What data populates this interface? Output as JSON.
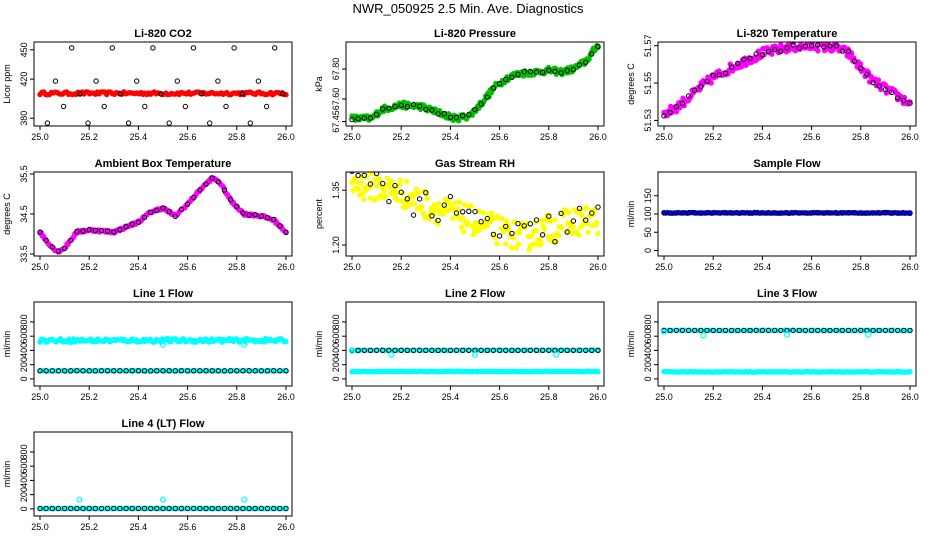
{
  "page": {
    "title": "NWR_050925  2.5 Min. Ave. Diagnostics"
  },
  "colors": {
    "co2": "#ff0000",
    "pressure": "#00c000",
    "temperature": "#ff00ff",
    "box": "#ff00ff",
    "rh": "#ffff00",
    "flow": "#0000ff",
    "line": "#00ffff",
    "outline": "#000000"
  },
  "chart_data": [
    {
      "id": "co2",
      "type": "scatter",
      "title": "Li-820 CO2",
      "ylabel": "Licor ppm",
      "xlim": [
        25.0,
        26.0
      ],
      "xticks": [
        "25.0",
        "25.2",
        "25.4",
        "25.6",
        "25.8",
        "26.0"
      ],
      "ylim": [
        372,
        458
      ],
      "yticks": [
        {
          "v": 380,
          "l": "380"
        },
        {
          "v": 420,
          "l": "420"
        },
        {
          "v": 450,
          "l": "450"
        }
      ],
      "series": [
        {
          "name": "dense",
          "color": "#ff0000",
          "kind": "band",
          "x": [
            25.0,
            26.0
          ],
          "y": [
            404,
            407
          ],
          "n": 130
        },
        {
          "name": "samples",
          "color": "#000000",
          "kind": "cycle",
          "x0": 25.03,
          "dx": 0.033,
          "levels": [
            375,
            392,
            405,
            418,
            452
          ]
        }
      ]
    },
    {
      "id": "pressure",
      "type": "scatter",
      "title": "Li-820 Pressure",
      "ylabel": "kPa",
      "xlim": [
        25.0,
        26.0
      ],
      "xticks": [
        "25.0",
        "25.2",
        "25.4",
        "25.6",
        "25.8",
        "26.0"
      ],
      "ylim": [
        67.42,
        67.98
      ],
      "yticks": [
        {
          "v": 67.45,
          "l": "67.45"
        },
        {
          "v": 67.6,
          "l": "67.60"
        },
        {
          "v": 67.8,
          "l": "67.80"
        }
      ],
      "series": [
        {
          "name": "dense",
          "color": "#00c000",
          "kind": "curve",
          "jitter": 0.02,
          "x": [
            25.0,
            25.08,
            25.12,
            25.2,
            25.28,
            25.35,
            25.42,
            25.48,
            25.53,
            25.58,
            25.63,
            25.68,
            25.75,
            25.8,
            25.85,
            25.9,
            25.95,
            26.0
          ],
          "y": [
            67.47,
            67.47,
            67.53,
            67.56,
            67.55,
            67.51,
            67.47,
            67.49,
            67.58,
            67.68,
            67.74,
            67.77,
            67.78,
            67.79,
            67.78,
            67.8,
            67.85,
            67.96
          ],
          "n": 220
        }
      ]
    },
    {
      "id": "temperature",
      "type": "scatter",
      "title": "Li-820 Temperature",
      "ylabel": "degrees C",
      "xlim": [
        25.0,
        26.0
      ],
      "xticks": [
        "25.0",
        "25.2",
        "25.4",
        "25.6",
        "25.8",
        "26.0"
      ],
      "ylim": [
        51.527,
        51.572
      ],
      "yticks": [
        {
          "v": 51.53,
          "l": "51.53"
        },
        {
          "v": 51.55,
          "l": "51.55"
        },
        {
          "v": 51.57,
          "l": "51.57"
        }
      ],
      "series": [
        {
          "name": "dense",
          "color": "#ff00ff",
          "kind": "curve",
          "jitter": 0.0025,
          "x": [
            25.0,
            25.05,
            25.1,
            25.15,
            25.2,
            25.3,
            25.4,
            25.5,
            25.6,
            25.7,
            25.75,
            25.8,
            25.85,
            25.9,
            25.95,
            26.0
          ],
          "y": [
            51.533,
            51.537,
            51.542,
            51.548,
            51.553,
            51.56,
            51.566,
            51.569,
            51.57,
            51.569,
            51.566,
            51.558,
            51.551,
            51.547,
            51.543,
            51.539
          ],
          "n": 220
        }
      ]
    },
    {
      "id": "box",
      "type": "scatter",
      "title": "Ambient Box Temperature",
      "ylabel": "degrees C",
      "xlim": [
        25.0,
        26.0
      ],
      "xticks": [
        "25.0",
        "25.2",
        "25.4",
        "25.6",
        "25.8",
        "26.0"
      ],
      "ylim": [
        33.45,
        35.55
      ],
      "yticks": [
        {
          "v": 33.5,
          "l": "33.5"
        },
        {
          "v": 34.5,
          "l": "34.5"
        },
        {
          "v": 35.5,
          "l": "35.5"
        }
      ],
      "series": [
        {
          "name": "dense",
          "color": "#ff00ff",
          "kind": "curve",
          "jitter": 0.03,
          "x": [
            25.0,
            25.03,
            25.07,
            25.1,
            25.15,
            25.2,
            25.3,
            25.4,
            25.45,
            25.5,
            25.55,
            25.6,
            25.65,
            25.7,
            25.73,
            25.78,
            25.83,
            25.9,
            25.95,
            26.0
          ],
          "y": [
            34.05,
            33.8,
            33.55,
            33.65,
            34.05,
            34.1,
            34.05,
            34.3,
            34.55,
            34.65,
            34.45,
            34.75,
            35.1,
            35.4,
            35.3,
            34.8,
            34.5,
            34.45,
            34.35,
            34.05
          ],
          "n": 220
        }
      ]
    },
    {
      "id": "rh",
      "type": "scatter",
      "title": "Gas Stream RH",
      "ylabel": "percent",
      "xlim": [
        25.0,
        26.0
      ],
      "xticks": [
        "25.0",
        "25.2",
        "25.4",
        "25.6",
        "25.8",
        "26.0"
      ],
      "ylim": [
        1.17,
        1.4
      ],
      "yticks": [
        {
          "v": 1.2,
          "l": "1.20"
        },
        {
          "v": 1.35,
          "l": "1.35"
        }
      ],
      "series": [
        {
          "name": "dense",
          "color": "#ffff00",
          "kind": "curve",
          "jitter": 0.04,
          "x": [
            25.0,
            25.1,
            25.2,
            25.3,
            25.4,
            25.5,
            25.6,
            25.7,
            25.8,
            25.9,
            26.0
          ],
          "y": [
            1.365,
            1.36,
            1.345,
            1.31,
            1.285,
            1.265,
            1.24,
            1.22,
            1.245,
            1.265,
            1.27
          ],
          "n": 230
        }
      ]
    },
    {
      "id": "sample",
      "type": "scatter",
      "title": "Sample Flow",
      "ylabel": "ml/min",
      "xlim": [
        25.0,
        26.0
      ],
      "xticks": [
        "25.0",
        "25.2",
        "25.4",
        "25.6",
        "25.8",
        "26.0"
      ],
      "ylim": [
        -15,
        215
      ],
      "yticks": [
        {
          "v": 0,
          "l": "0"
        },
        {
          "v": 50,
          "l": "50"
        },
        {
          "v": 100,
          "l": "100"
        },
        {
          "v": 150,
          "l": "150"
        }
      ],
      "series": [
        {
          "name": "dense",
          "color": "#0000ff",
          "kind": "band",
          "x": [
            25.0,
            26.0
          ],
          "y": [
            102,
            104
          ],
          "n": 140
        }
      ]
    },
    {
      "id": "line1",
      "type": "scatter",
      "title": "Line 1 Flow",
      "ylabel": "ml/min",
      "xlim": [
        25.0,
        26.0
      ],
      "xticks": [
        "25.0",
        "25.2",
        "25.4",
        "25.6",
        "25.8",
        "26.0"
      ],
      "ylim": [
        -100,
        1080
      ],
      "yticks": [
        {
          "v": 0,
          "l": "0"
        },
        {
          "v": 200,
          "l": "200"
        },
        {
          "v": 400,
          "l": "400"
        },
        {
          "v": 600,
          "l": "600"
        },
        {
          "v": 800,
          "l": "800"
        }
      ],
      "series": [
        {
          "name": "dense",
          "color": "#00ffff",
          "kind": "band",
          "x": [
            25.0,
            26.0
          ],
          "y": [
            515,
            565
          ],
          "n": 170
        },
        {
          "name": "dense2",
          "color": "#00ffff",
          "kind": "band",
          "x": [
            25.0,
            26.0
          ],
          "y": [
            110,
            118
          ],
          "n": 80
        }
      ]
    },
    {
      "id": "line2",
      "type": "scatter",
      "title": "Line 2 Flow",
      "ylabel": "ml/min",
      "xlim": [
        25.0,
        26.0
      ],
      "xticks": [
        "25.0",
        "25.2",
        "25.4",
        "25.6",
        "25.8",
        "26.0"
      ],
      "ylim": [
        -100,
        1080
      ],
      "yticks": [
        {
          "v": 0,
          "l": "0"
        },
        {
          "v": 200,
          "l": "200"
        },
        {
          "v": 400,
          "l": "400"
        },
        {
          "v": 600,
          "l": "600"
        },
        {
          "v": 800,
          "l": "800"
        }
      ],
      "series": [
        {
          "name": "dense",
          "color": "#00ffff",
          "kind": "band",
          "x": [
            25.0,
            26.0
          ],
          "y": [
            100,
            108
          ],
          "n": 170
        },
        {
          "name": "dense2",
          "color": "#00ffff",
          "kind": "band",
          "x": [
            25.0,
            26.0
          ],
          "y": [
            398,
            406
          ],
          "n": 60
        }
      ]
    },
    {
      "id": "line3",
      "type": "scatter",
      "title": "Line 3 Flow",
      "ylabel": "ml/min",
      "xlim": [
        25.0,
        26.0
      ],
      "xticks": [
        "25.0",
        "25.2",
        "25.4",
        "25.6",
        "25.8",
        "26.0"
      ],
      "ylim": [
        -100,
        1080
      ],
      "yticks": [
        {
          "v": 0,
          "l": "0"
        },
        {
          "v": 200,
          "l": "200"
        },
        {
          "v": 400,
          "l": "400"
        },
        {
          "v": 600,
          "l": "600"
        },
        {
          "v": 800,
          "l": "800"
        }
      ],
      "series": [
        {
          "name": "dense",
          "color": "#00ffff",
          "kind": "band",
          "x": [
            25.0,
            26.0
          ],
          "y": [
            94,
            102
          ],
          "n": 170
        },
        {
          "name": "dense2",
          "color": "#00ffff",
          "kind": "band",
          "x": [
            25.0,
            26.0
          ],
          "y": [
            676,
            686
          ],
          "n": 60
        }
      ]
    },
    {
      "id": "line4",
      "type": "scatter",
      "title": "Line 4 (LT) Flow",
      "ylabel": "ml/min",
      "xlim": [
        25.0,
        26.0
      ],
      "xticks": [
        "25.0",
        "25.2",
        "25.4",
        "25.6",
        "25.8",
        "26.0"
      ],
      "ylim": [
        -100,
        1080
      ],
      "yticks": [
        {
          "v": 0,
          "l": "0"
        },
        {
          "v": 200,
          "l": "200"
        },
        {
          "v": 400,
          "l": "400"
        },
        {
          "v": 600,
          "l": "600"
        },
        {
          "v": 800,
          "l": "800"
        }
      ],
      "series": [
        {
          "name": "dense",
          "color": "#00ffff",
          "kind": "band",
          "x": [
            25.0,
            26.0
          ],
          "y": [
            2,
            8
          ],
          "n": 90
        }
      ]
    }
  ],
  "overlay": {
    "sample_outline_y": 103,
    "line1_outline_y": 114,
    "line2_outline_y": 402,
    "line3_outline_y": 681,
    "line4_outline_y": 5,
    "spikes": {
      "line1": [
        {
          "x": 25.5,
          "y": 480
        },
        {
          "x": 25.83,
          "y": 480
        }
      ],
      "line2": [
        {
          "x": 25.0,
          "y": 395
        },
        {
          "x": 25.16,
          "y": 340
        },
        {
          "x": 25.5,
          "y": 340
        },
        {
          "x": 25.83,
          "y": 340
        }
      ],
      "line3": [
        {
          "x": 25.0,
          "y": 660
        },
        {
          "x": 25.16,
          "y": 610
        },
        {
          "x": 25.5,
          "y": 620
        },
        {
          "x": 25.83,
          "y": 620
        }
      ],
      "line4": [
        {
          "x": 25.16,
          "y": 130
        },
        {
          "x": 25.5,
          "y": 130
        },
        {
          "x": 25.83,
          "y": 130
        }
      ]
    }
  }
}
